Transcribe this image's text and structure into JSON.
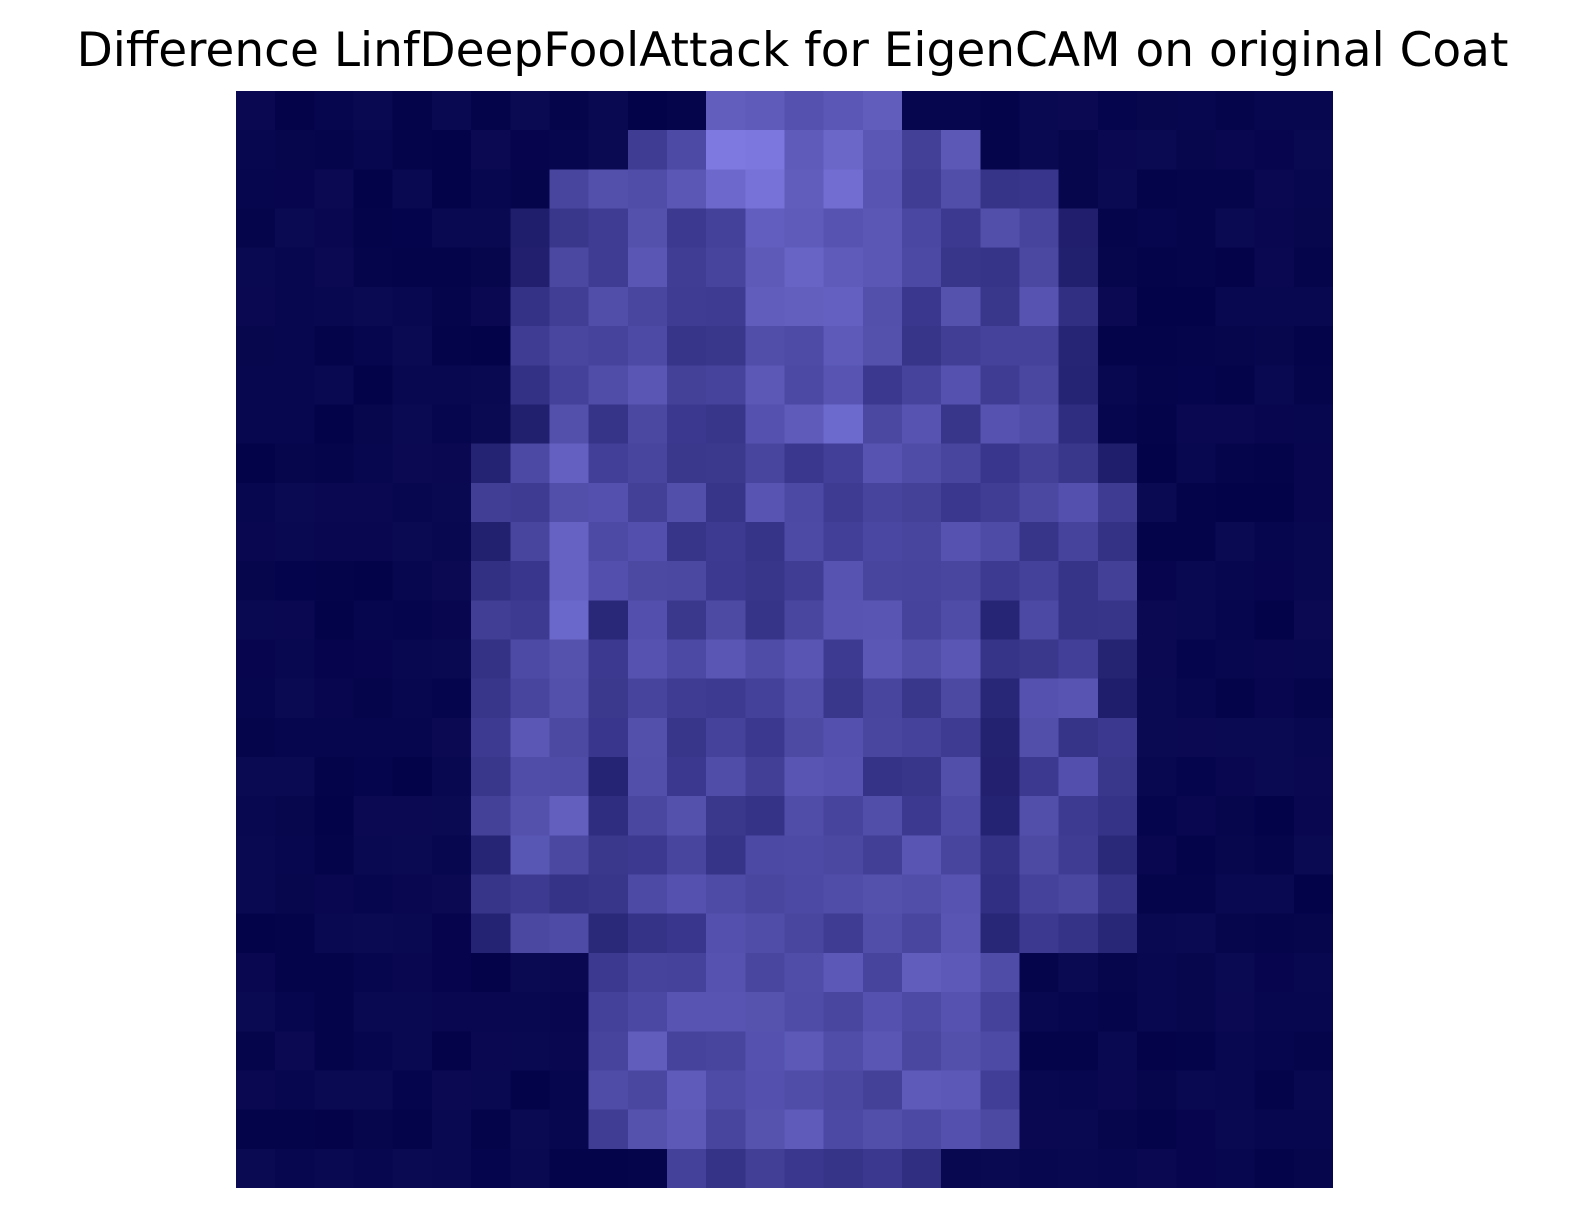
{
  "figure": {
    "title": "Difference LinfDeepFoolAttack for EigenCAM on original Coat"
  }
}
